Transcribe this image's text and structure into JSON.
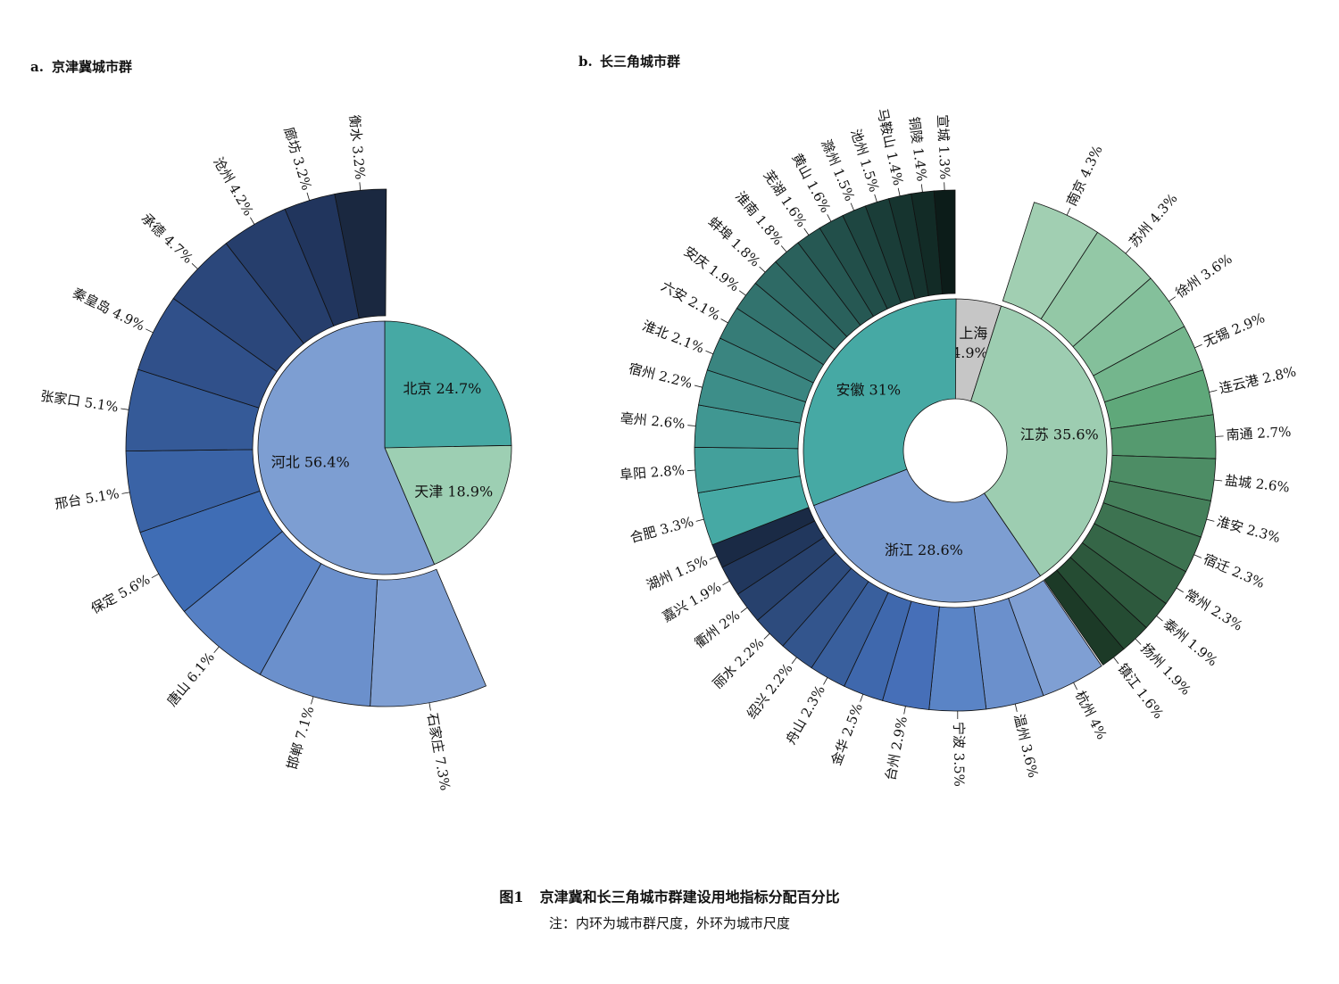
{
  "chart_data": [
    {
      "type": "sunburst",
      "panel_label": "a.",
      "title": "京津冀城市群",
      "inner_ring": [
        {
          "name": "北京",
          "value": 24.7,
          "label": "北京 24.7%",
          "color": "#46a9a4"
        },
        {
          "name": "天津",
          "value": 18.9,
          "label": "天津 18.9%",
          "color": "#9dcfb3"
        },
        {
          "name": "河北",
          "value": 56.4,
          "label": "河北 56.4%",
          "color": "#7d9ed2"
        }
      ],
      "outer_ring": [
        {
          "name": "石家庄",
          "value": 7.3,
          "label": "石家庄 7.3%",
          "color": "#7f9fd3"
        },
        {
          "name": "邯郸",
          "value": 7.1,
          "label": "邯郸 7.1%",
          "color": "#6b90cc"
        },
        {
          "name": "唐山",
          "value": 6.1,
          "label": "唐山 6.1%",
          "color": "#5680c4"
        },
        {
          "name": "保定",
          "value": 5.6,
          "label": "保定 5.6%",
          "color": "#3f6db5"
        },
        {
          "name": "邢台",
          "value": 5.1,
          "label": "邢台 5.1%",
          "color": "#3a63a6"
        },
        {
          "name": "张家口",
          "value": 5.1,
          "label": "张家口 5.1%",
          "color": "#355a98"
        },
        {
          "name": "秦皇岛",
          "value": 4.9,
          "label": "秦皇岛 4.9%",
          "color": "#30508a"
        },
        {
          "name": "承德",
          "value": 4.7,
          "label": "承德 4.7%",
          "color": "#2b477b"
        },
        {
          "name": "沧州",
          "value": 4.2,
          "label": "沧州 4.2%",
          "color": "#263e6c"
        },
        {
          "name": "廊坊",
          "value": 3.2,
          "label": "廊坊 3.2%",
          "color": "#21355d"
        },
        {
          "name": "衡水",
          "value": 3.2,
          "label": "衡水 3.2%",
          "color": "#1a2840"
        }
      ]
    },
    {
      "type": "sunburst",
      "panel_label": "b.",
      "title": "长三角城市群",
      "inner_ring": [
        {
          "name": "上海",
          "value": 4.9,
          "label": "上海 4.9%",
          "color": "#c6c6c6"
        },
        {
          "name": "江苏",
          "value": 35.6,
          "label": "江苏 35.6%",
          "color": "#9dcdb1"
        },
        {
          "name": "浙江",
          "value": 28.6,
          "label": "浙江 28.6%",
          "color": "#7d9ed2"
        },
        {
          "name": "安徽",
          "value": 31,
          "label": "安徽 31%",
          "color": "#46a9a4"
        }
      ],
      "outer_jiangsu": [
        {
          "name": "南京",
          "value": 4.3,
          "label": "南京 4.3%",
          "color": "#a1cfb2"
        },
        {
          "name": "苏州",
          "value": 4.3,
          "label": "苏州 4.3%",
          "color": "#93c8a6"
        },
        {
          "name": "徐州",
          "value": 3.6,
          "label": "徐州 3.6%",
          "color": "#84c09b"
        },
        {
          "name": "无锡",
          "value": 2.9,
          "label": "无锡 2.9%",
          "color": "#74b68d"
        },
        {
          "name": "连云港",
          "value": 2.8,
          "label": "连云港 2.8%",
          "color": "#5fa87a"
        },
        {
          "name": "南通",
          "value": 2.7,
          "label": "南通 2.7%",
          "color": "#559a6f"
        },
        {
          "name": "盐城",
          "value": 2.6,
          "label": "盐城 2.6%",
          "color": "#4d8d65"
        },
        {
          "name": "淮安",
          "value": 2.3,
          "label": "淮安 2.3%",
          "color": "#45805b"
        },
        {
          "name": "宿迁",
          "value": 2.3,
          "label": "宿迁 2.3%",
          "color": "#3d7351"
        },
        {
          "name": "常州",
          "value": 2.3,
          "label": "常州 2.3%",
          "color": "#356647"
        },
        {
          "name": "泰州",
          "value": 1.9,
          "label": "泰州 1.9%",
          "color": "#2d593d"
        },
        {
          "name": "扬州",
          "value": 1.9,
          "label": "扬州 1.9%",
          "color": "#254c33"
        },
        {
          "name": "镇江",
          "value": 1.6,
          "label": "镇江 1.6%",
          "color": "#1c3a27"
        }
      ],
      "outer_zhejiang": [
        {
          "name": "杭州",
          "value": 4,
          "label": "杭州 4%",
          "color": "#7f9fd3"
        },
        {
          "name": "温州",
          "value": 3.6,
          "label": "温州 3.6%",
          "color": "#6b90cc"
        },
        {
          "name": "宁波",
          "value": 3.5,
          "label": "宁波 3.5%",
          "color": "#5a84c6"
        },
        {
          "name": "台州",
          "value": 2.9,
          "label": "台州 2.9%",
          "color": "#466fb8"
        },
        {
          "name": "金华",
          "value": 2.5,
          "label": "金华 2.5%",
          "color": "#3f68ad"
        },
        {
          "name": "舟山",
          "value": 2.3,
          "label": "舟山 2.3%",
          "color": "#395f9d"
        },
        {
          "name": "绍兴",
          "value": 2.2,
          "label": "绍兴 2.2%",
          "color": "#33558d"
        },
        {
          "name": "丽水",
          "value": 2.2,
          "label": "丽水 2.2%",
          "color": "#2d4b7d"
        },
        {
          "name": "衢州",
          "value": 2,
          "label": "衢州 2%",
          "color": "#27416d"
        },
        {
          "name": "嘉兴",
          "value": 1.9,
          "label": "嘉兴 1.9%",
          "color": "#21375d"
        },
        {
          "name": "湖州",
          "value": 1.5,
          "label": "湖州 1.5%",
          "color": "#1a2a45"
        }
      ],
      "outer_anhui": [
        {
          "name": "合肥",
          "value": 3.3,
          "label": "合肥 3.3%",
          "color": "#46a9a4"
        },
        {
          "name": "阜阳",
          "value": 2.8,
          "label": "阜阳 2.8%",
          "color": "#43a09b"
        },
        {
          "name": "亳州",
          "value": 2.6,
          "label": "亳州 2.6%",
          "color": "#409792"
        },
        {
          "name": "宿州",
          "value": 2.2,
          "label": "宿州 2.2%",
          "color": "#3d8e89"
        },
        {
          "name": "淮北",
          "value": 2.1,
          "label": "淮北 2.1%",
          "color": "#3a8580"
        },
        {
          "name": "六安",
          "value": 2.1,
          "label": "六安 2.1%",
          "color": "#367c77"
        },
        {
          "name": "安庆",
          "value": 1.9,
          "label": "安庆 1.9%",
          "color": "#32736e"
        },
        {
          "name": "蚌埠",
          "value": 1.8,
          "label": "蚌埠 1.8%",
          "color": "#2e6a65"
        },
        {
          "name": "淮南",
          "value": 1.8,
          "label": "淮南 1.8%",
          "color": "#2a615c"
        },
        {
          "name": "芜湖",
          "value": 1.6,
          "label": "芜湖 1.6%",
          "color": "#265853"
        },
        {
          "name": "黄山",
          "value": 1.6,
          "label": "黄山 1.6%",
          "color": "#224f4a"
        },
        {
          "name": "滁州",
          "value": 1.5,
          "label": "滁州 1.5%",
          "color": "#1e4641"
        },
        {
          "name": "池州",
          "value": 1.5,
          "label": "池州 1.5%",
          "color": "#1a3d38"
        },
        {
          "name": "马鞍山",
          "value": 1.4,
          "label": "马鞍山 1.4%",
          "color": "#16342f"
        },
        {
          "name": "铜陵",
          "value": 1.4,
          "label": "铜陵 1.4%",
          "color": "#122b26"
        },
        {
          "name": "宣城",
          "value": 1.3,
          "label": "宣城 1.3%",
          "color": "#0c1c19"
        }
      ]
    }
  ],
  "caption": {
    "figure_number": "图1",
    "title": "京津冀和长三角城市群建设用地指标分配百分比",
    "note": "注：内环为城市群尺度，外环为城市尺度"
  }
}
